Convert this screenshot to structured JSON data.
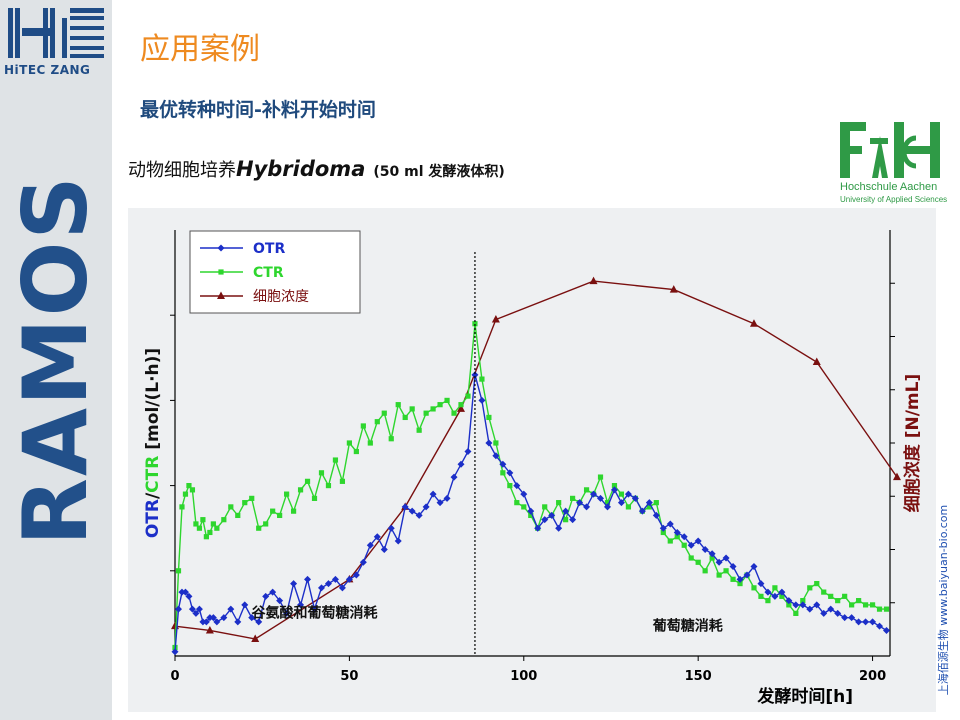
{
  "brand": {
    "company_name": "HiTEC ZANG",
    "product_name": "RAMOS"
  },
  "slide": {
    "title": "应用案例",
    "subtitle": "最优转种时间-补料开始时间",
    "caption_prefix": "动物细胞培养",
    "caption_organism": "Hybridoma",
    "caption_volume": "(50 ml 发酵液体积)"
  },
  "partner_logo": {
    "name_line1": "Hochschule Aachen",
    "name_line2": "University of Applied Sciences"
  },
  "watermark": "上海佰源生物 www.baiyuan-bio.com",
  "colors": {
    "title": "#ee8a20",
    "subtitle": "#1f4a7d",
    "otr": "#1c2fc8",
    "ctr": "#2ed62e",
    "cell": "#7a1010",
    "brand_blue": "#22508a",
    "fh_green": "#2f9a46"
  },
  "chart_data": {
    "type": "line",
    "xlabel": "发酵时间[h]",
    "ylabel_left_parts": [
      "OTR",
      "/",
      "CTR",
      " [mol/(L·h)]"
    ],
    "ylabel_right": "细胞浓度 [N/mL]",
    "xlim": [
      0,
      205
    ],
    "ylim_left": [
      0,
      10
    ],
    "ylim_right": [
      0,
      10
    ],
    "xticks": [
      0,
      50,
      100,
      150,
      200
    ],
    "grid": false,
    "legend_position": "top-left",
    "annotations": [
      {
        "text": "谷氨酸和葡萄糖消耗",
        "x": 40,
        "y": 0.9
      },
      {
        "text": "葡萄糖消耗",
        "x": 147,
        "y": 0.6
      },
      {
        "type": "vline",
        "x": 86
      }
    ],
    "series": [
      {
        "name": "OTR",
        "axis": "left",
        "marker": "diamond",
        "color": "#1c2fc8",
        "x": [
          0,
          1,
          2,
          3,
          4,
          5,
          6,
          7,
          8,
          9,
          10,
          11,
          12,
          14,
          16,
          18,
          20,
          22,
          24,
          26,
          28,
          30,
          32,
          34,
          36,
          38,
          40,
          42,
          44,
          46,
          48,
          50,
          52,
          54,
          56,
          58,
          60,
          62,
          64,
          66,
          68,
          70,
          72,
          74,
          76,
          78,
          80,
          82,
          84,
          86,
          88,
          90,
          92,
          94,
          96,
          98,
          100,
          102,
          104,
          106,
          108,
          110,
          112,
          114,
          116,
          118,
          120,
          122,
          124,
          126,
          128,
          130,
          132,
          134,
          136,
          138,
          140,
          142,
          144,
          146,
          148,
          150,
          152,
          154,
          156,
          158,
          160,
          162,
          164,
          166,
          168,
          170,
          172,
          174,
          176,
          178,
          180,
          182,
          184,
          186,
          188,
          190,
          192,
          194,
          196,
          198,
          200,
          202,
          204
        ],
        "y": [
          0.1,
          1.1,
          1.5,
          1.5,
          1.4,
          1.1,
          1.0,
          1.1,
          0.8,
          0.8,
          0.9,
          0.9,
          0.8,
          0.9,
          1.1,
          0.8,
          1.2,
          0.9,
          0.8,
          1.4,
          1.5,
          1.3,
          1.0,
          1.7,
          1.2,
          1.8,
          1.1,
          1.6,
          1.7,
          1.8,
          1.6,
          1.8,
          1.9,
          2.2,
          2.6,
          2.8,
          2.5,
          3.0,
          2.7,
          3.5,
          3.4,
          3.3,
          3.5,
          3.8,
          3.6,
          3.7,
          4.2,
          4.5,
          4.8,
          6.6,
          6.0,
          5.0,
          4.7,
          4.5,
          4.3,
          4.0,
          3.8,
          3.4,
          3.0,
          3.2,
          3.3,
          3.0,
          3.4,
          3.2,
          3.6,
          3.5,
          3.8,
          3.7,
          3.5,
          3.9,
          3.6,
          3.8,
          3.7,
          3.4,
          3.6,
          3.3,
          3.0,
          3.1,
          2.9,
          2.8,
          2.6,
          2.7,
          2.5,
          2.4,
          2.2,
          2.3,
          2.1,
          1.8,
          1.9,
          2.1,
          1.7,
          1.5,
          1.4,
          1.5,
          1.3,
          1.2,
          1.2,
          1.1,
          1.2,
          1.0,
          1.1,
          1.0,
          0.9,
          0.9,
          0.8,
          0.8,
          0.8,
          0.7,
          0.6
        ]
      },
      {
        "name": "CTR",
        "axis": "left",
        "marker": "square",
        "color": "#2ed62e",
        "x": [
          0,
          1,
          2,
          3,
          4,
          5,
          6,
          7,
          8,
          9,
          10,
          11,
          12,
          14,
          16,
          18,
          20,
          22,
          24,
          26,
          28,
          30,
          32,
          34,
          36,
          38,
          40,
          42,
          44,
          46,
          48,
          50,
          52,
          54,
          56,
          58,
          60,
          62,
          64,
          66,
          68,
          70,
          72,
          74,
          76,
          78,
          80,
          82,
          84,
          86,
          88,
          90,
          92,
          94,
          96,
          98,
          100,
          102,
          104,
          106,
          108,
          110,
          112,
          114,
          116,
          118,
          120,
          122,
          124,
          126,
          128,
          130,
          132,
          134,
          136,
          138,
          140,
          142,
          144,
          146,
          148,
          150,
          152,
          154,
          156,
          158,
          160,
          162,
          164,
          166,
          168,
          170,
          172,
          174,
          176,
          178,
          180,
          182,
          184,
          186,
          188,
          190,
          192,
          194,
          196,
          198,
          200,
          202,
          204
        ],
        "y": [
          0.2,
          2.0,
          3.5,
          3.8,
          4.0,
          3.9,
          3.1,
          3.0,
          3.2,
          2.8,
          2.9,
          3.1,
          3.0,
          3.2,
          3.5,
          3.3,
          3.6,
          3.7,
          3.0,
          3.1,
          3.4,
          3.3,
          3.8,
          3.4,
          3.9,
          4.1,
          3.7,
          4.3,
          4.0,
          4.6,
          4.1,
          5.0,
          4.8,
          5.4,
          5.0,
          5.5,
          5.7,
          5.1,
          5.9,
          5.6,
          5.8,
          5.3,
          5.7,
          5.8,
          5.9,
          6.0,
          5.7,
          5.9,
          6.1,
          7.8,
          6.5,
          5.6,
          5.0,
          4.3,
          4.0,
          3.6,
          3.5,
          3.3,
          3.0,
          3.5,
          3.3,
          3.6,
          3.2,
          3.7,
          3.6,
          3.9,
          3.8,
          4.2,
          3.6,
          4.0,
          3.8,
          3.5,
          3.7,
          3.4,
          3.5,
          3.6,
          2.9,
          2.7,
          2.8,
          2.6,
          2.3,
          2.2,
          2.0,
          2.3,
          1.9,
          2.0,
          1.8,
          1.7,
          1.9,
          1.6,
          1.4,
          1.3,
          1.6,
          1.4,
          1.2,
          1.0,
          1.3,
          1.6,
          1.7,
          1.5,
          1.4,
          1.3,
          1.4,
          1.2,
          1.3,
          1.2,
          1.2,
          1.1,
          1.1
        ]
      },
      {
        "name": "细胞浓度",
        "axis": "right",
        "marker": "triangle",
        "color": "#7a1010",
        "x": [
          0,
          10,
          23,
          50,
          66,
          82,
          92,
          120,
          143,
          166,
          184,
          207
        ],
        "y": [
          0.7,
          0.6,
          0.4,
          1.8,
          3.5,
          5.8,
          7.9,
          8.8,
          8.6,
          7.8,
          6.9,
          4.2
        ]
      }
    ]
  }
}
